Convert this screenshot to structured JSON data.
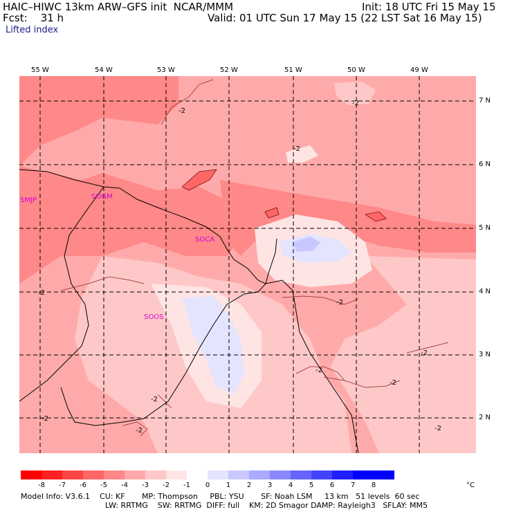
{
  "header": {
    "model": "HAIC–HIWC 13km ARW–GFS init  NCAR/MMM",
    "init": "Init: 18 UTC Fri 15 May 15",
    "fcst": "Fcst:    31 h",
    "valid": "Valid: 01 UTC Sun 17 May 15 (22 LST Sat 16 May 15)",
    "field": "Lifted index"
  },
  "lon_labels": [
    "55 W",
    "54 W",
    "53 W",
    "52 W",
    "51 W",
    "50 W",
    "49 W"
  ],
  "lat_labels": [
    "7 N",
    "6 N",
    "5 N",
    "4 N",
    "3 N",
    "2 N"
  ],
  "stations": [
    "SMJP",
    "SOGM",
    "SOCA",
    "SOOS"
  ],
  "contour_labels": [
    "-2",
    "-2",
    "-2",
    "-2",
    "-2",
    "-2",
    "-2",
    "-2",
    "-2",
    "-2",
    "-2",
    "-2"
  ],
  "colorbar": {
    "ticks": [
      "-8",
      "-7",
      "-6",
      "-5",
      "-4",
      "-3",
      "-2",
      "-1",
      "0",
      "1",
      "2",
      "3",
      "4",
      "5",
      "6",
      "7",
      "8"
    ],
    "unit": "°C",
    "colors": [
      "#ff0000",
      "#ff2020",
      "#ff4444",
      "#ff6666",
      "#ff8888",
      "#ffaaaa",
      "#ffc8c8",
      "#ffe4e4",
      "#ffffff",
      "#e4e4ff",
      "#c8c8ff",
      "#aaaaff",
      "#8888ff",
      "#6666ff",
      "#4444ff",
      "#2020ff",
      "#0000ff"
    ]
  },
  "footer": {
    "line1": "Model Info: V3.6.1    CU: KF       MP: Thompson     PBL: YSU       SF: Noah LSM     13 km   51 levels  60 sec",
    "line2": "LW: RRTMG    SW: RRTMG  DIFF: full    KM: 2D Smagor DAMP: Rayleigh3   SFLAY: MM5"
  }
}
